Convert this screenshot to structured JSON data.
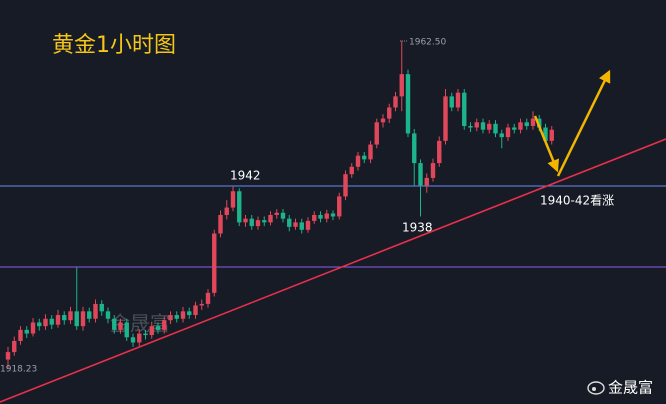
{
  "chart_data": {
    "type": "candlestick",
    "title": "黄金1小时图",
    "up_color": "#e0475a",
    "down_color": "#1db38b",
    "ylim": [
      1913.5,
      1968
    ],
    "high_label": "1962.50",
    "low_label": "1918.23",
    "annotations": [
      "1942",
      "1938",
      "1940-42看涨"
    ],
    "watermark": "金晟富",
    "brand": "金晟富",
    "candles": [
      [
        1919.5,
        1921.2,
        1918.23,
        1920.5
      ],
      [
        1920.5,
        1922.6,
        1920,
        1922
      ],
      [
        1922,
        1924,
        1921.5,
        1923.5
      ],
      [
        1923.5,
        1924,
        1922.4,
        1923
      ],
      [
        1923,
        1925.1,
        1922.6,
        1924.5
      ],
      [
        1924.5,
        1925,
        1923.4,
        1924
      ],
      [
        1924,
        1925.6,
        1923.5,
        1925
      ],
      [
        1925,
        1925.5,
        1923.6,
        1924.2
      ],
      [
        1924.2,
        1926.2,
        1923.8,
        1925.5
      ],
      [
        1925.5,
        1926,
        1924.2,
        1924.8
      ],
      [
        1924.8,
        1926.6,
        1924.3,
        1926
      ],
      [
        1926,
        1931.9,
        1923.5,
        1924
      ],
      [
        1924,
        1926.6,
        1923.4,
        1926
      ],
      [
        1926,
        1926.5,
        1924.5,
        1925
      ],
      [
        1925,
        1927.6,
        1924.5,
        1927
      ],
      [
        1927,
        1927.5,
        1925.4,
        1926
      ],
      [
        1926,
        1926.5,
        1924.4,
        1925
      ],
      [
        1925,
        1925.5,
        1923,
        1923.5
      ],
      [
        1923.5,
        1925,
        1923,
        1924.5
      ],
      [
        1924.5,
        1925,
        1922,
        1922.5
      ],
      [
        1922.5,
        1923,
        1921.2,
        1921.8
      ],
      [
        1921.8,
        1923.6,
        1921.3,
        1923
      ],
      [
        1923,
        1923.5,
        1922.2,
        1922.8
      ],
      [
        1922.8,
        1924.6,
        1922.3,
        1924
      ],
      [
        1924,
        1924.5,
        1923,
        1923.5
      ],
      [
        1923.5,
        1925.3,
        1923,
        1924.8
      ],
      [
        1924.8,
        1926,
        1924.3,
        1925.5
      ],
      [
        1925.5,
        1926,
        1924.5,
        1925
      ],
      [
        1925,
        1926.6,
        1924.5,
        1926
      ],
      [
        1926,
        1926.5,
        1925,
        1925.5
      ],
      [
        1925.5,
        1927.3,
        1925,
        1926.8
      ],
      [
        1926.8,
        1927.6,
        1926.2,
        1927
      ],
      [
        1927,
        1929,
        1926.5,
        1928.5
      ],
      [
        1928.5,
        1937,
        1928,
        1936.5
      ],
      [
        1936.5,
        1939.6,
        1936,
        1939
      ],
      [
        1939,
        1941,
        1938.4,
        1940
      ],
      [
        1940,
        1942.8,
        1939.5,
        1942.2
      ],
      [
        1942.2,
        1942.6,
        1937.5,
        1938
      ],
      [
        1938,
        1939,
        1937.4,
        1938.5
      ],
      [
        1938.5,
        1939,
        1937,
        1937.5
      ],
      [
        1937.5,
        1938.8,
        1937,
        1938.3
      ],
      [
        1938.3,
        1938.8,
        1937.5,
        1938
      ],
      [
        1938,
        1939.5,
        1937.6,
        1939
      ],
      [
        1939,
        1939.8,
        1938.5,
        1939.3
      ],
      [
        1939.3,
        1939.8,
        1938,
        1938.5
      ],
      [
        1938.5,
        1939,
        1936.8,
        1937.4
      ],
      [
        1937.4,
        1938.5,
        1937,
        1938
      ],
      [
        1938,
        1938.5,
        1936.5,
        1937
      ],
      [
        1937,
        1938.7,
        1936.6,
        1938.2
      ],
      [
        1938.2,
        1939.5,
        1937.8,
        1939
      ],
      [
        1939,
        1939.5,
        1938,
        1938.5
      ],
      [
        1938.5,
        1939.7,
        1938,
        1939.2
      ],
      [
        1939.2,
        1939.6,
        1938.3,
        1938.8
      ],
      [
        1938.8,
        1942,
        1938.4,
        1941.5
      ],
      [
        1941.5,
        1945,
        1941,
        1944.5
      ],
      [
        1944.5,
        1946,
        1944,
        1945.5
      ],
      [
        1945.5,
        1947.5,
        1945,
        1947
      ],
      [
        1947,
        1947.5,
        1946,
        1946.5
      ],
      [
        1946.5,
        1949,
        1946,
        1948.5
      ],
      [
        1948.5,
        1952,
        1948,
        1951.5
      ],
      [
        1951.5,
        1952.6,
        1950.8,
        1952
      ],
      [
        1952,
        1954,
        1951.4,
        1953.5
      ],
      [
        1953.5,
        1955.6,
        1953,
        1955
      ],
      [
        1955,
        1962.5,
        1953,
        1958
      ],
      [
        1958,
        1958.6,
        1949.5,
        1950
      ],
      [
        1950,
        1950.6,
        1943,
        1946
      ],
      [
        1946,
        1946.5,
        1938.8,
        1943
      ],
      [
        1943,
        1944.6,
        1942,
        1944
      ],
      [
        1944,
        1946.6,
        1943.5,
        1946
      ],
      [
        1946,
        1949.6,
        1945.5,
        1949
      ],
      [
        1949,
        1956,
        1948.5,
        1955
      ],
      [
        1955,
        1955.5,
        1953,
        1953.5
      ],
      [
        1953.5,
        1956,
        1953,
        1955.5
      ],
      [
        1955.5,
        1956,
        1950.5,
        1951
      ],
      [
        1951,
        1951.5,
        1950.2,
        1950.8
      ],
      [
        1950.8,
        1952,
        1950.3,
        1951.5
      ],
      [
        1951.5,
        1952,
        1950,
        1950.5
      ],
      [
        1950.5,
        1951.8,
        1950,
        1951.3
      ],
      [
        1951.3,
        1951.8,
        1949.5,
        1950
      ],
      [
        1950,
        1950.5,
        1948,
        1949.5
      ],
      [
        1949.5,
        1951.3,
        1949,
        1950.8
      ],
      [
        1950.8,
        1951.3,
        1950,
        1950.5
      ],
      [
        1950.5,
        1952,
        1950,
        1951.5
      ],
      [
        1951.5,
        1952,
        1950.5,
        1951
      ],
      [
        1951,
        1953,
        1950.5,
        1952
      ],
      [
        1952,
        1952.5,
        1950.3,
        1950.8
      ],
      [
        1950.8,
        1951.3,
        1948.5,
        1949
      ],
      [
        1949,
        1951,
        1948.5,
        1950.5
      ]
    ]
  }
}
